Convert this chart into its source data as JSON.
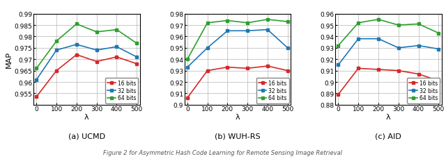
{
  "x": [
    0,
    100,
    200,
    300,
    400,
    500
  ],
  "ucmd": {
    "red": [
      0.9535,
      0.965,
      0.972,
      0.969,
      0.971,
      0.968
    ],
    "blue": [
      0.961,
      0.974,
      0.9765,
      0.974,
      0.9755,
      0.971
    ],
    "green": [
      0.966,
      0.978,
      0.9855,
      0.982,
      0.983,
      0.977
    ],
    "ylim": [
      0.95,
      0.99
    ],
    "yticks": [
      0.955,
      0.96,
      0.965,
      0.97,
      0.975,
      0.98,
      0.985,
      0.99
    ],
    "title": "(a) UCMD",
    "legend_bits": [
      "16 bits",
      "32 bits",
      "64 bits"
    ]
  },
  "wuhrs": {
    "red": [
      0.906,
      0.93,
      0.933,
      0.932,
      0.934,
      0.93
    ],
    "blue": [
      0.933,
      0.95,
      0.965,
      0.965,
      0.966,
      0.95
    ],
    "green": [
      0.94,
      0.972,
      0.974,
      0.972,
      0.975,
      0.973
    ],
    "ylim": [
      0.9,
      0.98
    ],
    "yticks": [
      0.9,
      0.91,
      0.92,
      0.93,
      0.94,
      0.95,
      0.96,
      0.97,
      0.98
    ],
    "title": "(b) WUH-RS",
    "legend_bits": [
      "16 bits",
      "32 bits",
      "64 bits"
    ]
  },
  "aid": {
    "red": [
      0.889,
      0.912,
      0.911,
      0.91,
      0.907,
      0.901
    ],
    "blue": [
      0.915,
      0.938,
      0.938,
      0.93,
      0.932,
      0.929
    ],
    "green": [
      0.932,
      0.952,
      0.955,
      0.95,
      0.951,
      0.943
    ],
    "ylim": [
      0.88,
      0.96
    ],
    "yticks": [
      0.88,
      0.89,
      0.9,
      0.91,
      0.92,
      0.93,
      0.94,
      0.95,
      0.96
    ],
    "title": "(c) AID",
    "legend_bits": [
      "16 bits",
      "32 bits",
      "64 bits"
    ]
  },
  "colors": {
    "red": "#d62728",
    "blue": "#1f77b4",
    "green": "#2ca02c"
  },
  "xlabel": "λ",
  "ylabel": "MAP",
  "caption": "Figure 2 for Asymmetric Hash Code Learning for Remote Sensing Image Retrieval",
  "marker": "s",
  "linewidth": 1.2,
  "markersize": 3.5
}
